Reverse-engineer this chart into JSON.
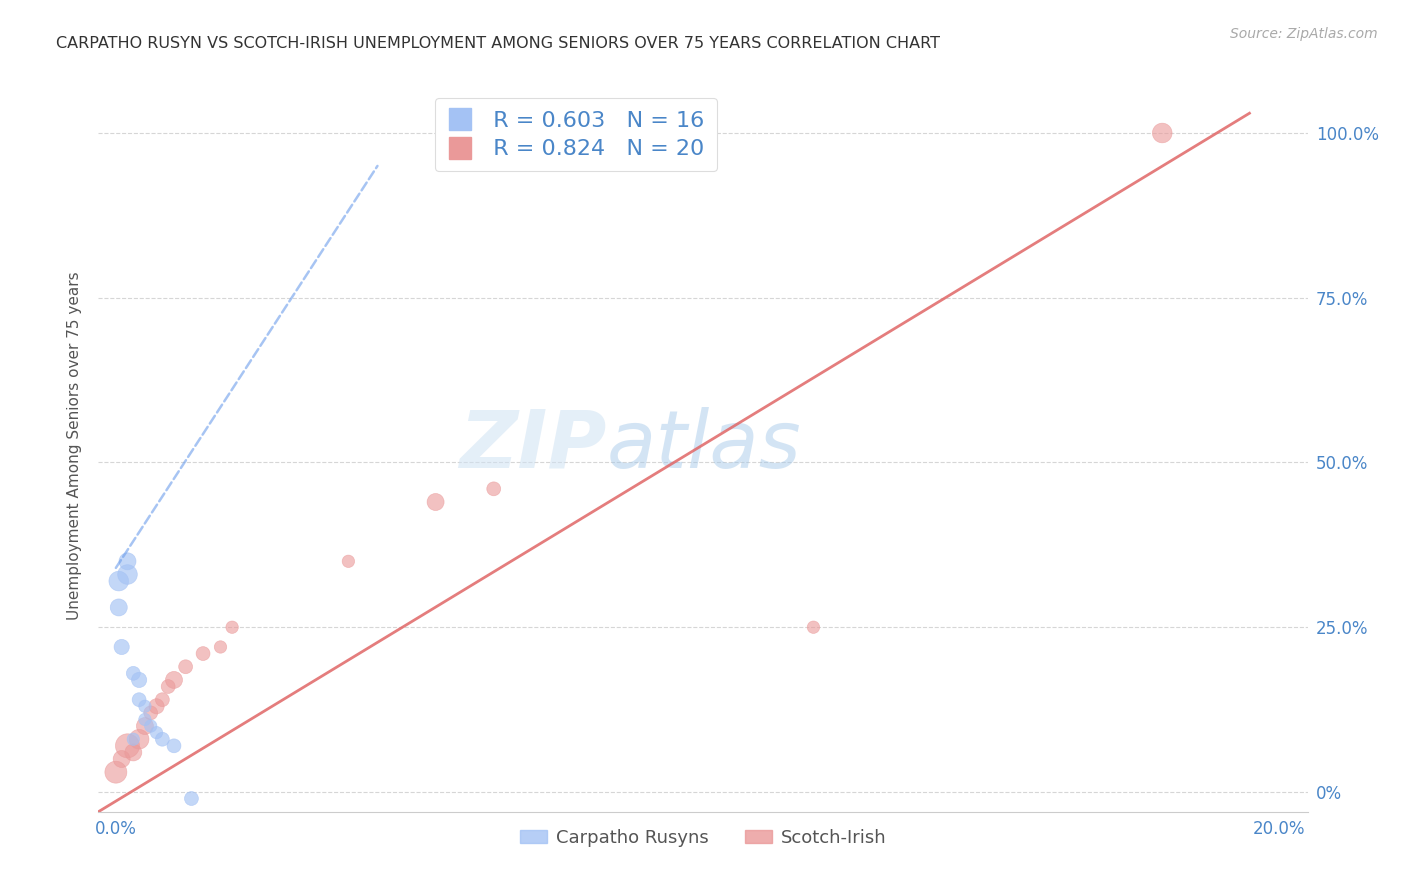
{
  "title": "CARPATHO RUSYN VS SCOTCH-IRISH UNEMPLOYMENT AMONG SENIORS OVER 75 YEARS CORRELATION CHART",
  "source": "Source: ZipAtlas.com",
  "ylabel": "Unemployment Among Seniors over 75 years",
  "background_color": "#ffffff",
  "watermark_zip": "ZIP",
  "watermark_atlas": "atlas",
  "blue_R": "R = 0.603",
  "blue_N": "N = 16",
  "pink_R": "R = 0.824",
  "pink_N": "N = 20",
  "xmin": -0.003,
  "xmax": 0.205,
  "ymin": -0.03,
  "ymax": 1.08,
  "yticks": [
    0.0,
    0.25,
    0.5,
    0.75,
    1.0
  ],
  "ytick_labels": [
    "0%",
    "25.0%",
    "50.0%",
    "75.0%",
    "100.0%"
  ],
  "blue_color": "#a4c2f4",
  "blue_edge_color": "#6d9eeb",
  "pink_color": "#ea9999",
  "pink_edge_color": "#e06666",
  "blue_line_color": "#6d9eeb",
  "pink_line_color": "#e06666",
  "carpatho_x": [
    0.0005,
    0.0005,
    0.001,
    0.002,
    0.002,
    0.003,
    0.003,
    0.004,
    0.004,
    0.005,
    0.005,
    0.006,
    0.007,
    0.008,
    0.01,
    0.013
  ],
  "carpatho_y": [
    0.32,
    0.28,
    0.22,
    0.33,
    0.35,
    0.18,
    0.08,
    0.17,
    0.14,
    0.13,
    0.11,
    0.1,
    0.09,
    0.08,
    0.07,
    -0.01
  ],
  "carpatho_size": [
    200,
    150,
    120,
    200,
    150,
    100,
    80,
    120,
    100,
    80,
    80,
    80,
    80,
    100,
    100,
    100
  ],
  "scotch_x": [
    0.0,
    0.001,
    0.002,
    0.003,
    0.004,
    0.005,
    0.006,
    0.007,
    0.008,
    0.009,
    0.01,
    0.012,
    0.015,
    0.018,
    0.02,
    0.04,
    0.055,
    0.065,
    0.12,
    0.18
  ],
  "scotch_y": [
    0.03,
    0.05,
    0.07,
    0.06,
    0.08,
    0.1,
    0.12,
    0.13,
    0.14,
    0.16,
    0.17,
    0.19,
    0.21,
    0.22,
    0.25,
    0.35,
    0.44,
    0.46,
    0.25,
    1.0
  ],
  "scotch_size": [
    250,
    150,
    300,
    150,
    200,
    150,
    100,
    120,
    100,
    100,
    150,
    100,
    100,
    80,
    80,
    80,
    150,
    100,
    80,
    200
  ],
  "blue_line_x0": 0.0,
  "blue_line_y0": 0.34,
  "blue_line_x1": 0.045,
  "blue_line_y1": 0.95,
  "pink_line_x0": -0.003,
  "pink_line_y0": -0.03,
  "pink_line_x1": 0.195,
  "pink_line_y1": 1.03
}
